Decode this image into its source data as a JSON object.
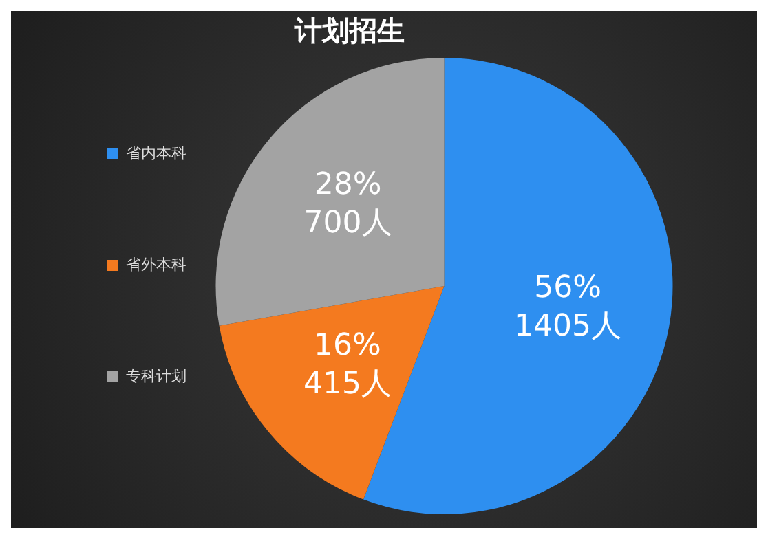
{
  "chart_data": {
    "type": "pie",
    "title": "计划招生",
    "categories": [
      "省内本科",
      "省外本科",
      "专科计划"
    ],
    "values": [
      1405,
      415,
      700
    ],
    "colors": [
      "#2e8ff0",
      "#f47a1f",
      "#a3a3a3"
    ],
    "value_labels": [
      "56%\n1405人",
      "16%\n415人",
      "28%\n700人"
    ],
    "legend": "left"
  }
}
